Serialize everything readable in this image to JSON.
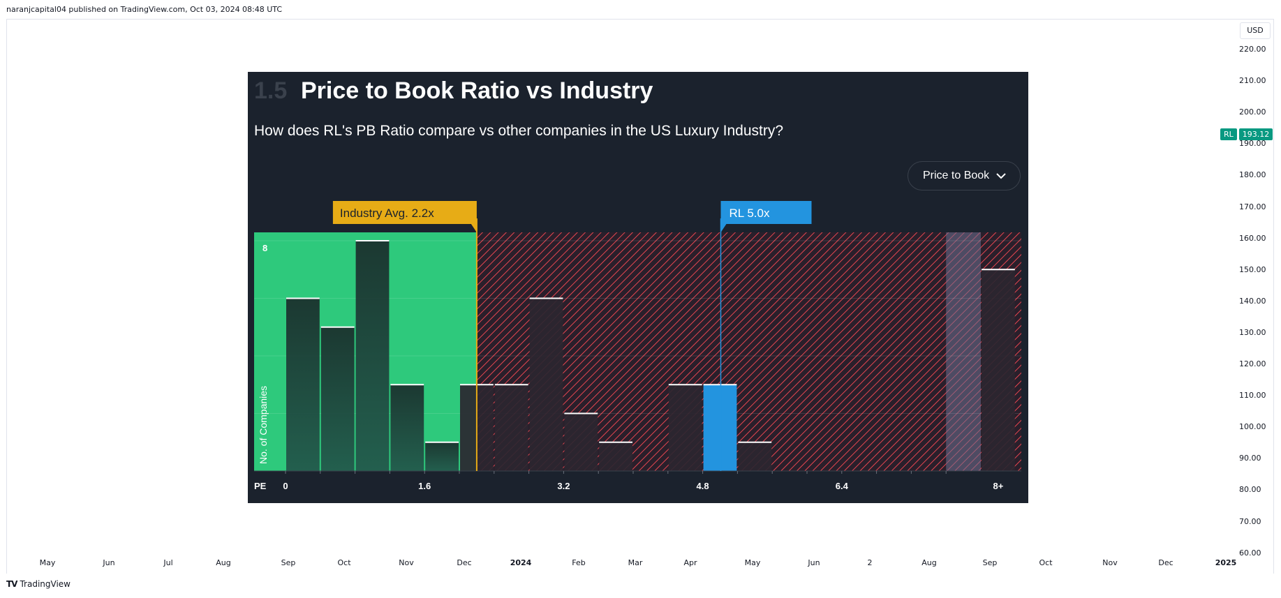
{
  "header": {
    "text": "naranjcapital04 published on TradingView.com, Oct 03, 2024 08:48 UTC"
  },
  "currency": "USD",
  "price_axis": [
    "220.00",
    "210.00",
    "200.00",
    "190.00",
    "180.00",
    "170.00",
    "160.00",
    "150.00",
    "140.00",
    "130.00",
    "120.00",
    "110.00",
    "100.00",
    "90.00",
    "80.00",
    "70.00",
    "60.00"
  ],
  "symbol_tag": {
    "symbol": "RL",
    "price": "193.12",
    "color": "#089981"
  },
  "time_axis": [
    {
      "label": "May",
      "bold": false
    },
    {
      "label": "Jun",
      "bold": false
    },
    {
      "label": "Jul",
      "bold": false
    },
    {
      "label": "Aug",
      "bold": false
    },
    {
      "label": "Sep",
      "bold": false
    },
    {
      "label": "Oct",
      "bold": false
    },
    {
      "label": "Nov",
      "bold": false
    },
    {
      "label": "Dec",
      "bold": false
    },
    {
      "label": "2024",
      "bold": true
    },
    {
      "label": "Feb",
      "bold": false
    },
    {
      "label": "Mar",
      "bold": false
    },
    {
      "label": "Apr",
      "bold": false
    },
    {
      "label": "May",
      "bold": false
    },
    {
      "label": "Jun",
      "bold": false
    },
    {
      "label": "2",
      "bold": false
    },
    {
      "label": "Aug",
      "bold": false
    },
    {
      "label": "Sep",
      "bold": false
    },
    {
      "label": "Oct",
      "bold": false
    },
    {
      "label": "Nov",
      "bold": false
    },
    {
      "label": "Dec",
      "bold": false
    },
    {
      "label": "2025",
      "bold": true
    }
  ],
  "footer": {
    "brand": "TradingView",
    "logo": "TV"
  },
  "panel": {
    "number": "1.5",
    "title": "Price to Book Ratio vs Industry",
    "subtitle": "How does RL's PB Ratio compare vs other companies in the US Luxury Industry?",
    "dropdown_label": "Price to Book"
  },
  "chart_data": {
    "type": "bar",
    "title": "Price to Book Ratio vs Industry",
    "xlabel": "PE",
    "ylabel": "No. of Companies",
    "x_tick_labels": [
      "0",
      "1.6",
      "3.2",
      "4.8",
      "6.4",
      "8+"
    ],
    "x_tick_values": [
      0,
      1.6,
      3.2,
      4.8,
      6.4,
      8
    ],
    "ymax_label": "8",
    "ylim": [
      0,
      8
    ],
    "bin_width": 0.4,
    "bins": [
      {
        "start": 0.0,
        "count": 6
      },
      {
        "start": 0.4,
        "count": 5
      },
      {
        "start": 0.8,
        "count": 8
      },
      {
        "start": 1.2,
        "count": 3
      },
      {
        "start": 1.6,
        "count": 1
      },
      {
        "start": 2.0,
        "count": 3
      },
      {
        "start": 2.4,
        "count": 3
      },
      {
        "start": 2.8,
        "count": 6
      },
      {
        "start": 3.2,
        "count": 2
      },
      {
        "start": 3.6,
        "count": 1
      },
      {
        "start": 4.4,
        "count": 3
      },
      {
        "start": 4.8,
        "count": 3,
        "highlight": true
      },
      {
        "start": 5.2,
        "count": 1
      },
      {
        "start": 8.0,
        "count": 7
      }
    ],
    "industry_avg": {
      "value": 2.2,
      "label": "Industry Avg. 2.2x",
      "color": "#e7ac16"
    },
    "company": {
      "value": 5.0,
      "label": "RL 5.0x",
      "color": "#2394df"
    },
    "colors": {
      "good_zone": "#2ec97c",
      "bad_zone": "#e64650",
      "bar": "#1f3b38",
      "highlight_bar": "#2394df"
    }
  }
}
